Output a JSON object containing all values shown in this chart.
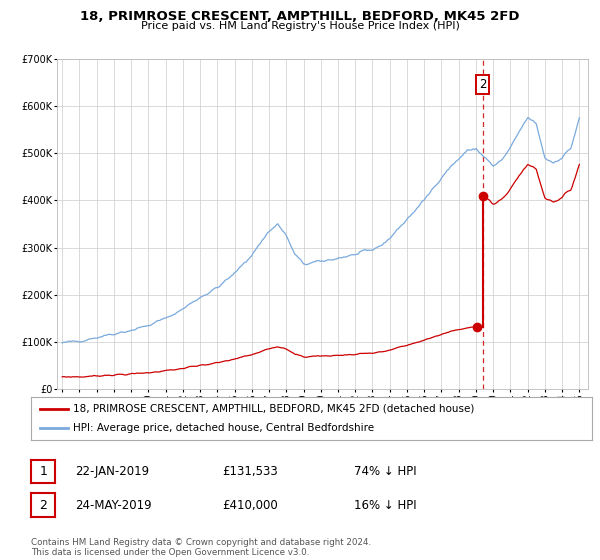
{
  "title": "18, PRIMROSE CRESCENT, AMPTHILL, BEDFORD, MK45 2FD",
  "subtitle": "Price paid vs. HM Land Registry's House Price Index (HPI)",
  "legend_line1": "18, PRIMROSE CRESCENT, AMPTHILL, BEDFORD, MK45 2FD (detached house)",
  "legend_line2": "HPI: Average price, detached house, Central Bedfordshire",
  "footer": "Contains HM Land Registry data © Crown copyright and database right 2024.\nThis data is licensed under the Open Government Licence v3.0.",
  "transaction1_date": "22-JAN-2019",
  "transaction1_price": "£131,533",
  "transaction1_hpi": "74% ↓ HPI",
  "transaction2_date": "24-MAY-2019",
  "transaction2_price": "£410,000",
  "transaction2_hpi": "16% ↓ HPI",
  "ylim_min": 0,
  "ylim_max": 700000,
  "hpi_color": "#7aaadd",
  "price_color": "#cc0000",
  "point1_x": 2019.055,
  "point1_y": 131533,
  "point2_x": 2019.39,
  "point2_y": 410000,
  "vline_x": 2019.39,
  "background_color": "#ffffff",
  "grid_color": "#cccccc",
  "xmin": 1994.7,
  "xmax": 2025.5,
  "yticks": [
    0,
    100000,
    200000,
    300000,
    400000,
    500000,
    600000,
    700000
  ]
}
